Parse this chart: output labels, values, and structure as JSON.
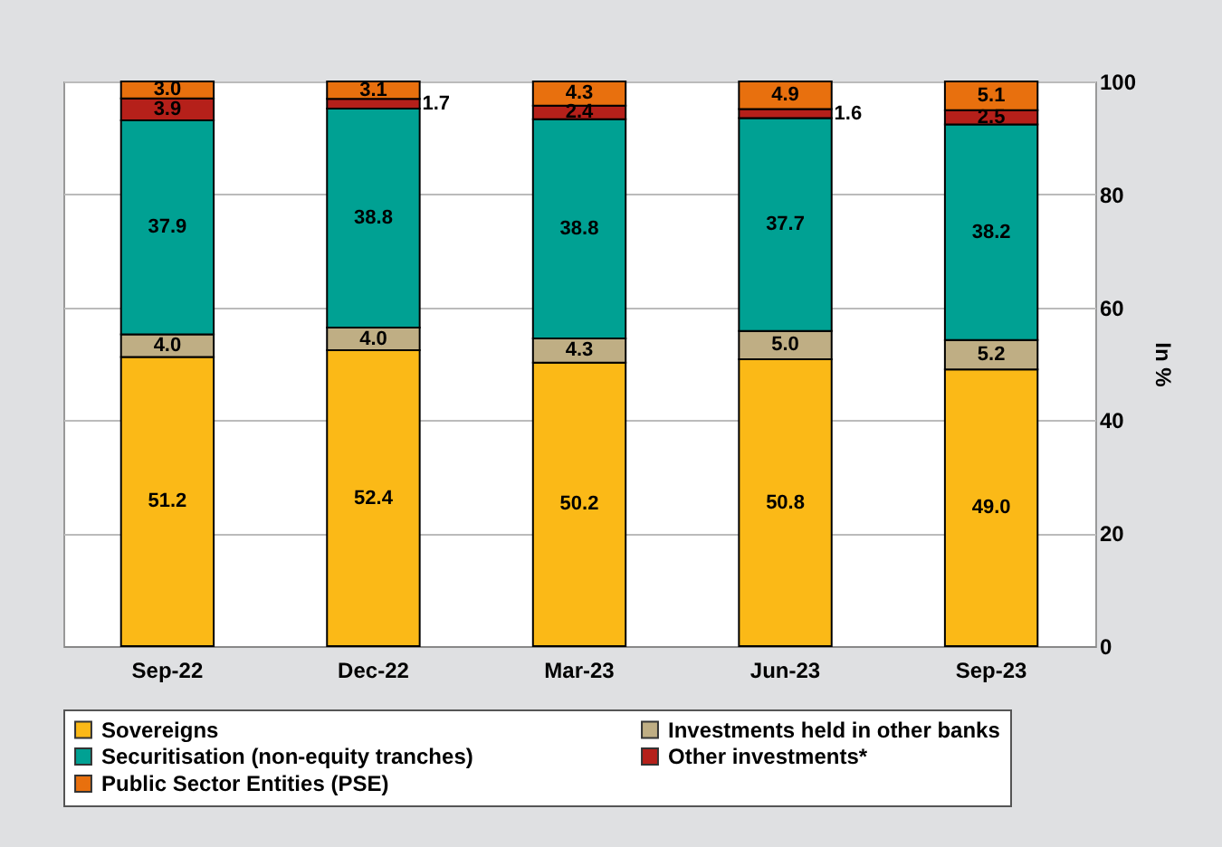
{
  "chart_data": {
    "type": "bar",
    "stacked": true,
    "ylabel": "In %",
    "categories": [
      "Sep-22",
      "Dec-22",
      "Mar-23",
      "Jun-23",
      "Sep-23"
    ],
    "series": [
      {
        "name": "Sovereigns",
        "color": "#fbb917",
        "values": [
          51.2,
          52.4,
          50.2,
          50.8,
          49
        ],
        "value_labels": [
          "51.2",
          "52.4",
          "50.2",
          "50.8",
          "49.0"
        ]
      },
      {
        "name": "Investments held in other banks",
        "color": "#bfae84",
        "values": [
          4,
          4,
          4.3,
          5,
          5.2
        ],
        "value_labels": [
          "4.0",
          "4.0",
          "4.3",
          "5.0",
          "5.2"
        ]
      },
      {
        "name": "Securitisation (non-equity tranches)",
        "color": "#00a193",
        "values": [
          37.9,
          38.8,
          38.8,
          37.7,
          38.2
        ],
        "value_labels": [
          "37.9",
          "38.8",
          "38.8",
          "37.7",
          "38.2"
        ]
      },
      {
        "name": "Other investments*",
        "color": "#b5201a",
        "values": [
          3.9,
          1.7,
          2.4,
          1.6,
          2.5
        ],
        "value_labels": [
          "3.9",
          "1.7",
          "2.4",
          "1.6",
          "2.5"
        ]
      },
      {
        "name": "Public Sector Entities (PSE)",
        "color": "#e8700e",
        "values": [
          3,
          3.1,
          4.3,
          4.9,
          5.1
        ],
        "value_labels": [
          "3.0",
          "3.1",
          "4.3",
          "4.9",
          "5.1"
        ]
      }
    ],
    "ylim": [
      0,
      100
    ],
    "yticks": [
      0,
      20,
      40,
      60,
      80,
      100
    ],
    "grid": "y",
    "legend": "bottom"
  }
}
